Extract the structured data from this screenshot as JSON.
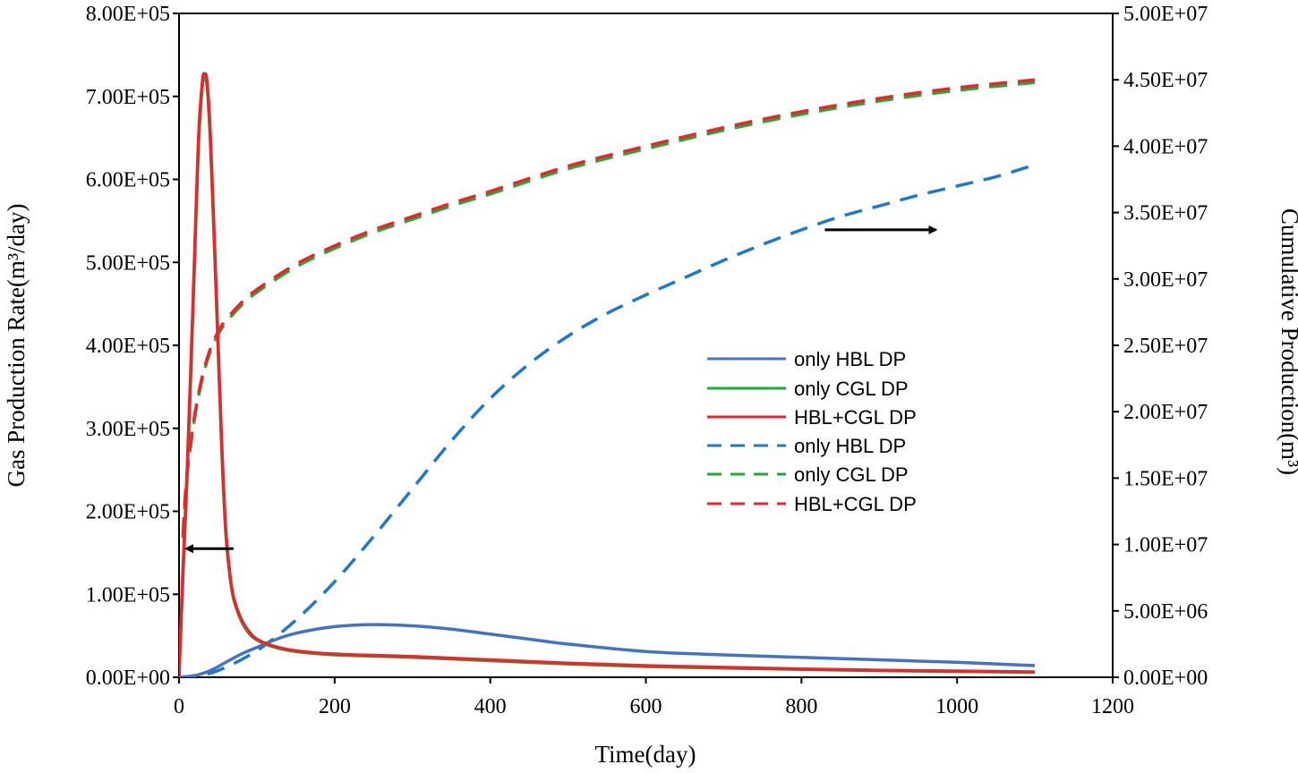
{
  "chart_data": {
    "type": "line",
    "xlabel": "Time(day)",
    "ylabel_left": "Gas Production Rate(m³/day)",
    "ylabel_right": "Cumulative Production(m³)",
    "xlim": [
      0,
      1200
    ],
    "ylim_left": [
      0,
      800000
    ],
    "ylim_right": [
      0,
      50000000
    ],
    "x_ticks": [
      "0",
      "200",
      "400",
      "600",
      "800",
      "1000",
      "1200"
    ],
    "y_left_ticks": [
      "0.00E+00",
      "1.00E+05",
      "2.00E+05",
      "3.00E+05",
      "4.00E+05",
      "5.00E+05",
      "6.00E+05",
      "7.00E+05",
      "8.00E+05"
    ],
    "y_right_ticks": [
      "0.00E+00",
      "5.00E+06",
      "1.00E+07",
      "1.50E+07",
      "2.00E+07",
      "2.50E+07",
      "3.00E+07",
      "3.50E+07",
      "4.00E+07",
      "4.50E+07",
      "5.00E+07"
    ],
    "legend_position": "center-right",
    "series": [
      {
        "name": "only HBL DP",
        "axis": "left",
        "style": "solid",
        "color": "#4472c4",
        "x": [
          0,
          20,
          40,
          60,
          80,
          100,
          120,
          150,
          200,
          250,
          300,
          350,
          400,
          450,
          500,
          600,
          700,
          800,
          900,
          1000,
          1100
        ],
        "y": [
          0,
          2000,
          8000,
          18000,
          28000,
          36000,
          44000,
          53000,
          61000,
          63500,
          62000,
          58000,
          52000,
          46000,
          40000,
          31000,
          27000,
          24000,
          21000,
          18000,
          14000
        ]
      },
      {
        "name": "only CGL DP",
        "axis": "left",
        "style": "solid",
        "color": "#22a93a",
        "x": [
          0,
          5,
          10,
          15,
          20,
          25,
          30,
          33,
          36,
          40,
          45,
          50,
          55,
          60,
          65,
          70,
          80,
          90,
          100,
          120,
          150,
          200,
          300,
          400,
          500,
          600,
          700,
          800,
          900,
          1000,
          1100
        ],
        "y": [
          0,
          120000,
          230000,
          360000,
          500000,
          640000,
          712000,
          722000,
          712000,
          650000,
          530000,
          400000,
          270000,
          175000,
          125000,
          95000,
          68000,
          53000,
          45000,
          37000,
          31000,
          27000,
          24000,
          20000,
          16000,
          13000,
          11000,
          9500,
          8000,
          7000,
          6000
        ]
      },
      {
        "name": "HBL+CGL DP",
        "axis": "left",
        "style": "solid",
        "color": "#e8262b",
        "x": [
          0,
          5,
          10,
          15,
          20,
          25,
          30,
          33,
          36,
          40,
          45,
          50,
          55,
          60,
          65,
          70,
          80,
          90,
          100,
          120,
          150,
          200,
          300,
          400,
          500,
          600,
          700,
          800,
          900,
          1000,
          1100
        ],
        "y": [
          0,
          130000,
          240000,
          370000,
          510000,
          650000,
          718000,
          727000,
          718000,
          660000,
          540000,
          410000,
          280000,
          180000,
          128000,
          97000,
          70000,
          55000,
          46000,
          38000,
          32000,
          28000,
          25000,
          21000,
          17000,
          14000,
          12000,
          10000,
          8500,
          7500,
          6500
        ]
      },
      {
        "name": "only HBL DP",
        "axis": "right",
        "style": "dashed",
        "color": "#1f78c8",
        "x": [
          0,
          20,
          50,
          100,
          150,
          200,
          250,
          300,
          350,
          400,
          450,
          500,
          550,
          600,
          650,
          700,
          750,
          800,
          850,
          900,
          950,
          1000,
          1050,
          1100
        ],
        "y": [
          0,
          100000,
          500000,
          2000000,
          4300000,
          7200000,
          10600000,
          14200000,
          17800000,
          21000000,
          23600000,
          25700000,
          27400000,
          28800000,
          30100000,
          31400000,
          32600000,
          33700000,
          34700000,
          35500000,
          36300000,
          37000000,
          37700000,
          38600000
        ]
      },
      {
        "name": "only CGL DP",
        "axis": "right",
        "style": "dashed",
        "color": "#22a93a",
        "x": [
          5,
          10,
          20,
          30,
          40,
          50,
          60,
          80,
          100,
          150,
          200,
          250,
          300,
          350,
          400,
          500,
          600,
          700,
          800,
          900,
          1000,
          1100
        ],
        "y": [
          10500000,
          15000000,
          19500000,
          22500000,
          24500000,
          25800000,
          26700000,
          28000000,
          29000000,
          30900000,
          32300000,
          33500000,
          34500000,
          35500000,
          36400000,
          38300000,
          39800000,
          41200000,
          42400000,
          43400000,
          44200000,
          44800000
        ]
      },
      {
        "name": "HBL+CGL DP",
        "axis": "right",
        "style": "dashed",
        "color": "#e8262b",
        "x": [
          5,
          10,
          20,
          30,
          40,
          50,
          60,
          80,
          100,
          150,
          200,
          250,
          300,
          350,
          400,
          500,
          600,
          700,
          800,
          900,
          1000,
          1100
        ],
        "y": [
          10700000,
          15200000,
          19700000,
          22700000,
          24700000,
          26000000,
          26900000,
          28200000,
          29200000,
          31100000,
          32500000,
          33700000,
          34700000,
          35700000,
          36600000,
          38500000,
          40000000,
          41400000,
          42600000,
          43600000,
          44400000,
          45000000
        ]
      }
    ],
    "arrows": [
      {
        "axis": "left",
        "direction": "left",
        "from": [
          70,
          155000
        ],
        "to": [
          0,
          155000
        ]
      },
      {
        "axis": "right",
        "direction": "right",
        "from": [
          830,
          33700000
        ],
        "to": [
          975,
          33700000
        ]
      }
    ]
  }
}
